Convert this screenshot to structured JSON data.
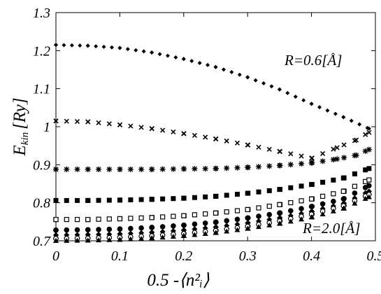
{
  "chart_data": {
    "type": "scatter",
    "title": "",
    "xlabel": "0.5 -⟨n²ᵢ⟩",
    "ylabel": "E_kin [Ry]",
    "ylabel_main": "E",
    "ylabel_sub": "kin",
    "ylabel_unit": "[Ry]",
    "xlim": [
      0,
      0.5
    ],
    "ylim": [
      0.7,
      1.3
    ],
    "xticks": [
      "0",
      "0.1",
      "0.2",
      "0.3",
      "0.4",
      "0.5"
    ],
    "yticks": [
      "0.7",
      "0.8",
      "0.9",
      "1",
      "1.1",
      "1.2",
      "1.3"
    ],
    "grid": false,
    "annotations": [
      "R=0.6[Å]",
      "R=2.0[Å]"
    ],
    "series": [
      {
        "marker": "diamond",
        "points": [
          [
            0,
            1.215
          ],
          [
            0.05,
            1.213
          ],
          [
            0.1,
            1.207
          ],
          [
            0.15,
            1.195
          ],
          [
            0.2,
            1.178
          ],
          [
            0.25,
            1.157
          ],
          [
            0.3,
            1.13
          ],
          [
            0.35,
            1.098
          ],
          [
            0.4,
            1.06
          ],
          [
            0.45,
            1.025
          ],
          [
            0.49,
            0.995
          ]
        ]
      },
      {
        "marker": "x",
        "points": [
          [
            0,
            1.015
          ],
          [
            0.05,
            1.013
          ],
          [
            0.1,
            1.005
          ],
          [
            0.15,
            0.995
          ],
          [
            0.2,
            0.982
          ],
          [
            0.25,
            0.968
          ],
          [
            0.3,
            0.952
          ],
          [
            0.35,
            0.935
          ],
          [
            0.4,
            0.917
          ],
          [
            0.44,
            0.945
          ],
          [
            0.47,
            0.965
          ],
          [
            0.49,
            0.985
          ]
        ]
      },
      {
        "marker": "asterisk",
        "points": [
          [
            0,
            0.888
          ],
          [
            0.05,
            0.888
          ],
          [
            0.1,
            0.888
          ],
          [
            0.15,
            0.888
          ],
          [
            0.2,
            0.889
          ],
          [
            0.25,
            0.89
          ],
          [
            0.3,
            0.893
          ],
          [
            0.35,
            0.898
          ],
          [
            0.4,
            0.905
          ],
          [
            0.44,
            0.915
          ],
          [
            0.47,
            0.925
          ],
          [
            0.49,
            0.94
          ]
        ]
      },
      {
        "marker": "square-filled",
        "points": [
          [
            0,
            0.806
          ],
          [
            0.05,
            0.806
          ],
          [
            0.1,
            0.807
          ],
          [
            0.15,
            0.809
          ],
          [
            0.2,
            0.812
          ],
          [
            0.25,
            0.817
          ],
          [
            0.3,
            0.825
          ],
          [
            0.35,
            0.835
          ],
          [
            0.4,
            0.848
          ],
          [
            0.45,
            0.865
          ],
          [
            0.49,
            0.89
          ]
        ]
      },
      {
        "marker": "square-open",
        "points": [
          [
            0,
            0.756
          ],
          [
            0.05,
            0.756
          ],
          [
            0.1,
            0.758
          ],
          [
            0.15,
            0.761
          ],
          [
            0.2,
            0.766
          ],
          [
            0.25,
            0.773
          ],
          [
            0.3,
            0.782
          ],
          [
            0.35,
            0.795
          ],
          [
            0.4,
            0.81
          ],
          [
            0.45,
            0.83
          ],
          [
            0.49,
            0.86
          ]
        ]
      },
      {
        "marker": "circle-filled",
        "points": [
          [
            0,
            0.728
          ],
          [
            0.05,
            0.729
          ],
          [
            0.1,
            0.731
          ],
          [
            0.15,
            0.735
          ],
          [
            0.2,
            0.741
          ],
          [
            0.25,
            0.749
          ],
          [
            0.3,
            0.76
          ],
          [
            0.35,
            0.773
          ],
          [
            0.4,
            0.79
          ],
          [
            0.45,
            0.81
          ],
          [
            0.49,
            0.845
          ]
        ]
      },
      {
        "marker": "diamond-filled",
        "points": [
          [
            0,
            0.715
          ],
          [
            0.05,
            0.716
          ],
          [
            0.1,
            0.718
          ],
          [
            0.15,
            0.722
          ],
          [
            0.2,
            0.728
          ],
          [
            0.25,
            0.736
          ],
          [
            0.3,
            0.747
          ],
          [
            0.35,
            0.76
          ],
          [
            0.4,
            0.777
          ],
          [
            0.45,
            0.798
          ],
          [
            0.49,
            0.83
          ]
        ]
      },
      {
        "marker": "circle-open",
        "points": [
          [
            0,
            0.706
          ],
          [
            0.05,
            0.707
          ],
          [
            0.1,
            0.709
          ],
          [
            0.15,
            0.713
          ],
          [
            0.2,
            0.719
          ],
          [
            0.25,
            0.727
          ],
          [
            0.3,
            0.738
          ],
          [
            0.35,
            0.752
          ],
          [
            0.4,
            0.77
          ],
          [
            0.45,
            0.792
          ],
          [
            0.49,
            0.822
          ]
        ]
      },
      {
        "marker": "triangle-filled",
        "points": [
          [
            0,
            0.7
          ],
          [
            0.05,
            0.701
          ],
          [
            0.1,
            0.703
          ],
          [
            0.15,
            0.707
          ],
          [
            0.2,
            0.713
          ],
          [
            0.25,
            0.721
          ],
          [
            0.3,
            0.732
          ],
          [
            0.35,
            0.745
          ],
          [
            0.4,
            0.762
          ],
          [
            0.45,
            0.785
          ],
          [
            0.49,
            0.815
          ]
        ]
      }
    ]
  }
}
